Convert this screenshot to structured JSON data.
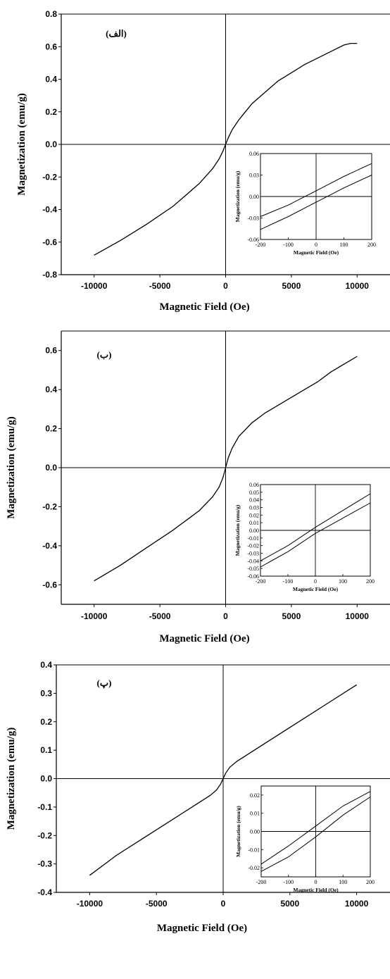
{
  "chart_data": [
    {
      "type": "line",
      "panel_label": "(الف)",
      "xlabel": "Magnetic Field (Oe)",
      "ylabel": "Magnetization (emu/g)",
      "xlim": [
        -12500,
        12500
      ],
      "ylim": [
        -0.8,
        0.8
      ],
      "xticks": [
        -10000,
        -5000,
        0,
        5000,
        10000
      ],
      "yticks": [
        -0.8,
        -0.6,
        -0.4,
        -0.2,
        0.0,
        0.2,
        0.4,
        0.6,
        0.8
      ],
      "xtick_labels": [
        "-10000",
        "-5000",
        "0",
        "5000",
        "10000"
      ],
      "ytick_labels": [
        "-0.8",
        "-0.6",
        "-0.4",
        "-0.2",
        "0.0",
        "0.2",
        "0.4",
        "0.6",
        "0.8"
      ],
      "series": [
        {
          "x": [
            -10000,
            -8000,
            -6000,
            -4000,
            -3000,
            -2000,
            -1000,
            -500,
            -200,
            0,
            200,
            500,
            1000,
            2000,
            3000,
            4000,
            5000,
            6000,
            7000,
            8000,
            9000,
            9500,
            10000
          ],
          "y": [
            -0.68,
            -0.59,
            -0.49,
            -0.38,
            -0.31,
            -0.24,
            -0.15,
            -0.09,
            -0.04,
            0.0,
            0.04,
            0.09,
            0.15,
            0.25,
            0.32,
            0.39,
            0.44,
            0.49,
            0.53,
            0.57,
            0.61,
            0.62,
            0.62
          ]
        }
      ],
      "inset": {
        "xlabel": "Magnetic Field (Oe)",
        "ylabel": "Magnetization (emu/g)",
        "xlim": [
          -200,
          200
        ],
        "ylim": [
          -0.06,
          0.06
        ],
        "xticks": [
          -200,
          -100,
          0,
          100,
          200
        ],
        "yticks": [
          -0.06,
          -0.03,
          0.0,
          0.03,
          0.06
        ],
        "xtick_labels": [
          "-200",
          "-100",
          "0",
          "100",
          "200"
        ],
        "ytick_labels": [
          "-0.06",
          "-0.03",
          "0.00",
          "0.03",
          "0.06"
        ],
        "series": [
          {
            "x": [
              -200,
              -100,
              0,
              100,
              200
            ],
            "y": [
              -0.028,
              -0.012,
              0.008,
              0.028,
              0.046
            ]
          },
          {
            "x": [
              -200,
              -100,
              0,
              100,
              200
            ],
            "y": [
              -0.046,
              -0.028,
              -0.008,
              0.012,
              0.03
            ]
          }
        ]
      }
    },
    {
      "type": "line",
      "panel_label": "(ب)",
      "xlabel": "Magnetic Field (Oe)",
      "ylabel": "Magnetization (emu/g)",
      "xlim": [
        -12500,
        12500
      ],
      "ylim": [
        -0.7,
        0.7
      ],
      "xticks": [
        -10000,
        -5000,
        0,
        5000,
        10000
      ],
      "yticks": [
        -0.6,
        -0.4,
        -0.2,
        0.0,
        0.2,
        0.4,
        0.6
      ],
      "xtick_labels": [
        "-10000",
        "-5000",
        "0",
        "5000",
        "10000"
      ],
      "ytick_labels": [
        "-0.6",
        "-0.4",
        "-0.2",
        "0.0",
        "0.2",
        "0.4",
        "0.6"
      ],
      "series": [
        {
          "x": [
            -10000,
            -8000,
            -6000,
            -4000,
            -3000,
            -2000,
            -1000,
            -500,
            -200,
            0,
            200,
            500,
            1000,
            2000,
            3000,
            4000,
            5000,
            6000,
            7000,
            8000,
            9000,
            10000
          ],
          "y": [
            -0.58,
            -0.5,
            -0.41,
            -0.32,
            -0.27,
            -0.22,
            -0.15,
            -0.1,
            -0.05,
            0.0,
            0.05,
            0.1,
            0.16,
            0.23,
            0.28,
            0.32,
            0.36,
            0.4,
            0.44,
            0.49,
            0.53,
            0.57
          ]
        }
      ],
      "inset": {
        "xlabel": "Magnetic Field (Oe)",
        "ylabel": "Magnetization (emu/g)",
        "xlim": [
          -200,
          200
        ],
        "ylim": [
          -0.06,
          0.06
        ],
        "xticks": [
          -200,
          -100,
          0,
          100,
          200
        ],
        "yticks": [
          -0.06,
          -0.05,
          -0.04,
          -0.03,
          -0.02,
          -0.01,
          0.0,
          0.01,
          0.02,
          0.03,
          0.04,
          0.05,
          0.06
        ],
        "xtick_labels": [
          "-200",
          "-100",
          "0",
          "100",
          "200"
        ],
        "ytick_labels": [
          "-0.06",
          "-0.05",
          "-0.04",
          "-0.03",
          "-0.02",
          "-0.01",
          "0.00",
          "0.01",
          "0.02",
          "0.03",
          "0.04",
          "0.05",
          "0.06"
        ],
        "series": [
          {
            "x": [
              -200,
              -100,
              0,
              100,
              200
            ],
            "y": [
              -0.04,
              -0.02,
              0.004,
              0.026,
              0.048
            ]
          },
          {
            "x": [
              -200,
              -100,
              0,
              100,
              200
            ],
            "y": [
              -0.048,
              -0.028,
              -0.004,
              0.016,
              0.036
            ]
          }
        ]
      }
    },
    {
      "type": "line",
      "panel_label": "(پ)",
      "xlabel": "Magnetic Field (Oe)",
      "ylabel": "Magnetization (emu/g)",
      "xlim": [
        -12500,
        12500
      ],
      "ylim": [
        -0.4,
        0.4
      ],
      "xticks": [
        -10000,
        -5000,
        0,
        5000,
        10000
      ],
      "yticks": [
        -0.4,
        -0.3,
        -0.2,
        -0.1,
        0.0,
        0.1,
        0.2,
        0.3,
        0.4
      ],
      "xtick_labels": [
        "-10000",
        "-5000",
        "0",
        "5000",
        "10000"
      ],
      "ytick_labels": [
        "-0.4",
        "-0.3",
        "-0.2",
        "-0.1",
        "0.0",
        "0.1",
        "0.2",
        "0.3",
        "0.4"
      ],
      "series": [
        {
          "x": [
            -10000,
            -8000,
            -6000,
            -4000,
            -2000,
            -1000,
            -500,
            -200,
            0,
            200,
            500,
            1000,
            2000,
            4000,
            6000,
            8000,
            10000
          ],
          "y": [
            -0.34,
            -0.27,
            -0.21,
            -0.15,
            -0.09,
            -0.06,
            -0.04,
            -0.02,
            0.0,
            0.02,
            0.04,
            0.06,
            0.09,
            0.15,
            0.21,
            0.27,
            0.33
          ]
        }
      ],
      "inset": {
        "xlabel": "Magnetic Field (Oe)",
        "ylabel": "Magnetization (emu/g)",
        "xlim": [
          -200,
          200
        ],
        "ylim": [
          -0.025,
          0.025
        ],
        "xticks": [
          -200,
          -100,
          0,
          100,
          200
        ],
        "yticks": [
          -0.02,
          -0.01,
          0.0,
          0.01,
          0.02
        ],
        "xtick_labels": [
          "-200",
          "-100",
          "0",
          "100",
          "200"
        ],
        "ytick_labels": [
          "-0.02",
          "-0.01",
          "0.00",
          "0.01",
          "0.02"
        ],
        "series": [
          {
            "x": [
              -200,
              -100,
              0,
              100,
              200
            ],
            "y": [
              -0.018,
              -0.008,
              0.003,
              0.014,
              0.022
            ]
          },
          {
            "x": [
              -200,
              -100,
              0,
              100,
              200
            ],
            "y": [
              -0.022,
              -0.014,
              -0.003,
              0.009,
              0.019
            ]
          }
        ]
      }
    }
  ]
}
